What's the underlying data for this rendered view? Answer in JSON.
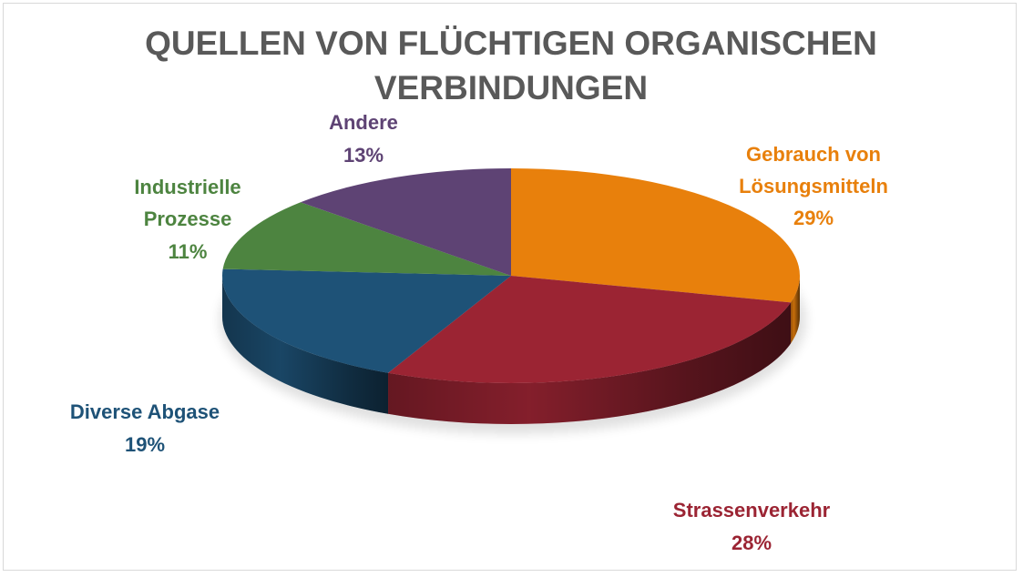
{
  "chart_data": {
    "type": "pie",
    "title_lines": [
      "QUELLEN VON FLÜCHTIGEN ORGANISCHEN",
      "VERBINDUNGEN"
    ],
    "slices": [
      {
        "label_lines": [
          "Gebrauch von",
          "Lösungsmitteln"
        ],
        "percent_label": "29%",
        "value": 29,
        "color": "#e8800c"
      },
      {
        "label_lines": [
          "Strassenverkehr"
        ],
        "percent_label": "28%",
        "value": 28,
        "color": "#9b2433"
      },
      {
        "label_lines": [
          "Diverse Abgase"
        ],
        "percent_label": "19%",
        "value": 19,
        "color": "#1e5277"
      },
      {
        "label_lines": [
          "Industrielle",
          "Prozesse"
        ],
        "percent_label": "11%",
        "value": 11,
        "color": "#4d8440"
      },
      {
        "label_lines": [
          "Andere"
        ],
        "percent_label": "13%",
        "value": 13,
        "color": "#5e4374"
      }
    ],
    "legend": "none",
    "style": "3d"
  }
}
